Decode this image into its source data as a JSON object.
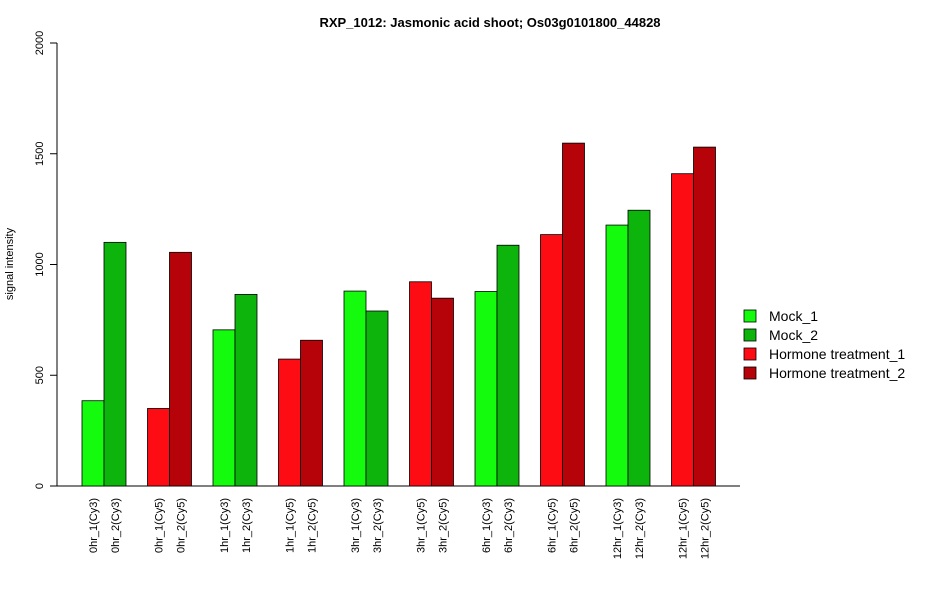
{
  "chart_data": {
    "type": "bar",
    "title": "RXP_1012: Jasmonic acid shoot; Os03g0101800_44828",
    "xlabel": "",
    "ylabel": "signal intensity",
    "ylim": [
      0,
      2000
    ],
    "yticks": [
      "0",
      "500",
      "1000",
      "1500",
      "2000"
    ],
    "grid": false,
    "legend_position": "right",
    "categories": [
      "0hr_1(Cy3)",
      "0hr_2(Cy3)",
      "0hr_1(Cy5)",
      "0hr_2(Cy5)",
      "1hr_1(Cy3)",
      "1hr_2(Cy3)",
      "1hr_1(Cy5)",
      "1hr_2(Cy5)",
      "3hr_1(Cy3)",
      "3hr_2(Cy3)",
      "3hr_1(Cy5)",
      "3hr_2(Cy5)",
      "6hr_1(Cy3)",
      "6hr_2(Cy3)",
      "6hr_1(Cy5)",
      "6hr_2(Cy5)",
      "12hr_1(Cy3)",
      "12hr_2(Cy3)",
      "12hr_1(Cy5)",
      "12hr_2(Cy5)"
    ],
    "values": [
      385,
      1100,
      350,
      1055,
      705,
      865,
      573,
      658,
      880,
      790,
      922,
      848,
      878,
      1087,
      1135,
      1548,
      1178,
      1245,
      1410,
      1530
    ],
    "bar_series": [
      0,
      1,
      2,
      3,
      0,
      1,
      2,
      3,
      0,
      1,
      2,
      3,
      0,
      1,
      2,
      3,
      0,
      1,
      2,
      3
    ],
    "series": [
      {
        "name": "Mock_1",
        "color": "#14fb0d"
      },
      {
        "name": "Mock_2",
        "color": "#0db40b"
      },
      {
        "name": "Hormone treatment_1",
        "color": "#fe0c14"
      },
      {
        "name": "Hormone treatment_2",
        "color": "#b60309"
      }
    ]
  }
}
